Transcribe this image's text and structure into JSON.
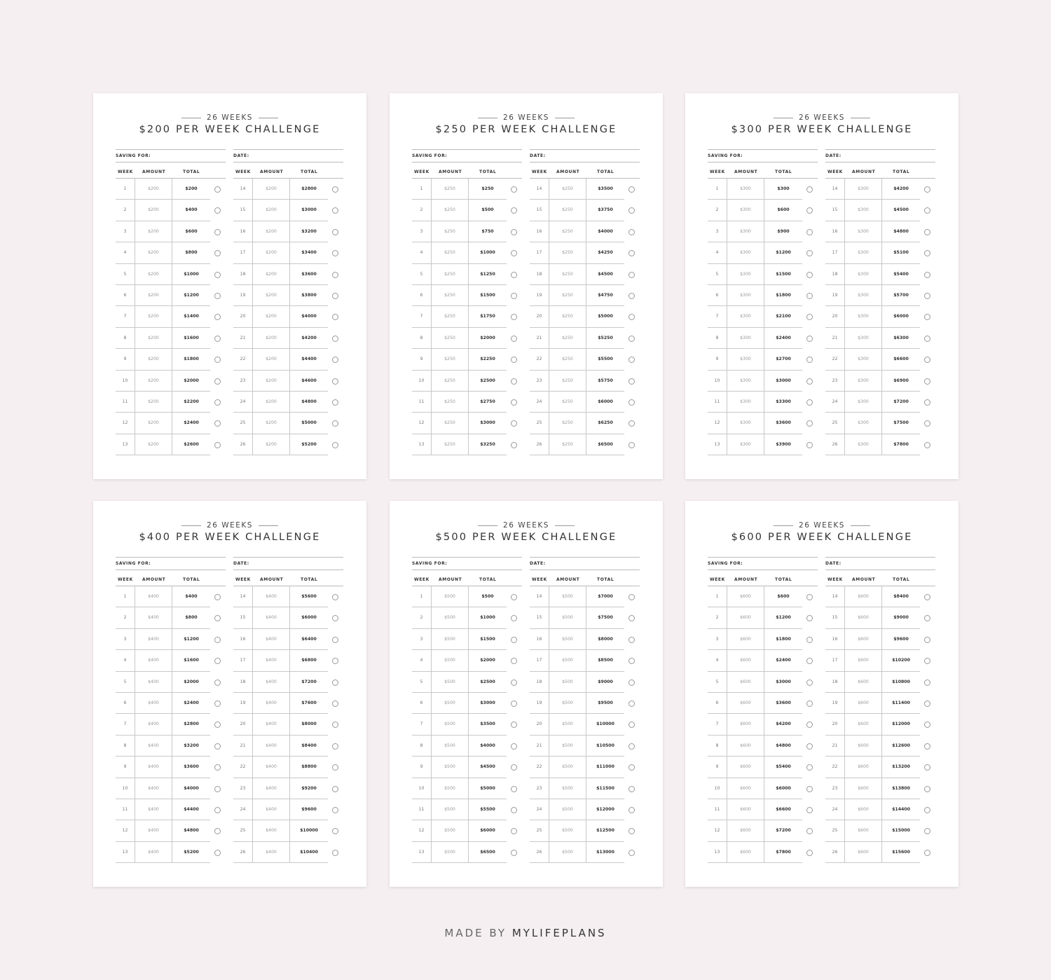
{
  "subtitle": "26 WEEKS",
  "saving_label": "SAVING FOR:",
  "date_label": "DATE:",
  "columns": [
    "WEEK",
    "AMOUNT",
    "TOTAL"
  ],
  "footer": {
    "prefix": "MADE BY",
    "brand": "MYLIFEPLANS"
  },
  "pages": [
    {
      "title": "$200 PER WEEK CHALLENGE",
      "rows": [
        [
          "1",
          "$200",
          "$200"
        ],
        [
          "2",
          "$200",
          "$400"
        ],
        [
          "3",
          "$200",
          "$600"
        ],
        [
          "4",
          "$200",
          "$800"
        ],
        [
          "5",
          "$200",
          "$1000"
        ],
        [
          "6",
          "$200",
          "$1200"
        ],
        [
          "7",
          "$200",
          "$1400"
        ],
        [
          "8",
          "$200",
          "$1600"
        ],
        [
          "9",
          "$200",
          "$1800"
        ],
        [
          "10",
          "$200",
          "$2000"
        ],
        [
          "11",
          "$200",
          "$2200"
        ],
        [
          "12",
          "$200",
          "$2400"
        ],
        [
          "13",
          "$200",
          "$2600"
        ],
        [
          "14",
          "$200",
          "$2800"
        ],
        [
          "15",
          "$200",
          "$3000"
        ],
        [
          "16",
          "$200",
          "$3200"
        ],
        [
          "17",
          "$200",
          "$3400"
        ],
        [
          "18",
          "$200",
          "$3600"
        ],
        [
          "19",
          "$200",
          "$3800"
        ],
        [
          "20",
          "$200",
          "$4000"
        ],
        [
          "21",
          "$200",
          "$4200"
        ],
        [
          "22",
          "$200",
          "$4400"
        ],
        [
          "23",
          "$200",
          "$4600"
        ],
        [
          "24",
          "$200",
          "$4800"
        ],
        [
          "25",
          "$200",
          "$5000"
        ],
        [
          "26",
          "$200",
          "$5200"
        ]
      ]
    },
    {
      "title": "$250 PER WEEK CHALLENGE",
      "rows": [
        [
          "1",
          "$250",
          "$250"
        ],
        [
          "2",
          "$250",
          "$500"
        ],
        [
          "3",
          "$250",
          "$750"
        ],
        [
          "4",
          "$250",
          "$1000"
        ],
        [
          "5",
          "$250",
          "$1250"
        ],
        [
          "6",
          "$250",
          "$1500"
        ],
        [
          "7",
          "$250",
          "$1750"
        ],
        [
          "8",
          "$250",
          "$2000"
        ],
        [
          "9",
          "$250",
          "$2250"
        ],
        [
          "10",
          "$250",
          "$2500"
        ],
        [
          "11",
          "$250",
          "$2750"
        ],
        [
          "12",
          "$250",
          "$3000"
        ],
        [
          "13",
          "$250",
          "$3250"
        ],
        [
          "14",
          "$250",
          "$3500"
        ],
        [
          "15",
          "$250",
          "$3750"
        ],
        [
          "16",
          "$250",
          "$4000"
        ],
        [
          "17",
          "$250",
          "$4250"
        ],
        [
          "18",
          "$250",
          "$4500"
        ],
        [
          "19",
          "$250",
          "$4750"
        ],
        [
          "20",
          "$250",
          "$5000"
        ],
        [
          "21",
          "$250",
          "$5250"
        ],
        [
          "22",
          "$250",
          "$5500"
        ],
        [
          "23",
          "$250",
          "$5750"
        ],
        [
          "24",
          "$250",
          "$6000"
        ],
        [
          "25",
          "$250",
          "$6250"
        ],
        [
          "26",
          "$250",
          "$6500"
        ]
      ]
    },
    {
      "title": "$300 PER WEEK CHALLENGE",
      "rows": [
        [
          "1",
          "$300",
          "$300"
        ],
        [
          "2",
          "$300",
          "$600"
        ],
        [
          "3",
          "$300",
          "$900"
        ],
        [
          "4",
          "$300",
          "$1200"
        ],
        [
          "5",
          "$300",
          "$1500"
        ],
        [
          "6",
          "$300",
          "$1800"
        ],
        [
          "7",
          "$300",
          "$2100"
        ],
        [
          "8",
          "$300",
          "$2400"
        ],
        [
          "9",
          "$300",
          "$2700"
        ],
        [
          "10",
          "$300",
          "$3000"
        ],
        [
          "11",
          "$300",
          "$3300"
        ],
        [
          "12",
          "$300",
          "$3600"
        ],
        [
          "13",
          "$300",
          "$3900"
        ],
        [
          "14",
          "$300",
          "$4200"
        ],
        [
          "15",
          "$300",
          "$4500"
        ],
        [
          "16",
          "$300",
          "$4800"
        ],
        [
          "17",
          "$300",
          "$5100"
        ],
        [
          "18",
          "$300",
          "$5400"
        ],
        [
          "19",
          "$300",
          "$5700"
        ],
        [
          "20",
          "$300",
          "$6000"
        ],
        [
          "21",
          "$300",
          "$6300"
        ],
        [
          "22",
          "$300",
          "$6600"
        ],
        [
          "23",
          "$300",
          "$6900"
        ],
        [
          "24",
          "$300",
          "$7200"
        ],
        [
          "25",
          "$300",
          "$7500"
        ],
        [
          "26",
          "$300",
          "$7800"
        ]
      ]
    },
    {
      "title": "$400 PER WEEK CHALLENGE",
      "rows": [
        [
          "1",
          "$400",
          "$400"
        ],
        [
          "2",
          "$400",
          "$800"
        ],
        [
          "3",
          "$400",
          "$1200"
        ],
        [
          "4",
          "$400",
          "$1600"
        ],
        [
          "5",
          "$400",
          "$2000"
        ],
        [
          "6",
          "$400",
          "$2400"
        ],
        [
          "7",
          "$400",
          "$2800"
        ],
        [
          "8",
          "$400",
          "$3200"
        ],
        [
          "9",
          "$400",
          "$3600"
        ],
        [
          "10",
          "$400",
          "$4000"
        ],
        [
          "11",
          "$400",
          "$4400"
        ],
        [
          "12",
          "$400",
          "$4800"
        ],
        [
          "13",
          "$400",
          "$5200"
        ],
        [
          "14",
          "$400",
          "$5600"
        ],
        [
          "15",
          "$400",
          "$6000"
        ],
        [
          "16",
          "$400",
          "$6400"
        ],
        [
          "17",
          "$400",
          "$6800"
        ],
        [
          "18",
          "$400",
          "$7200"
        ],
        [
          "19",
          "$400",
          "$7600"
        ],
        [
          "20",
          "$400",
          "$8000"
        ],
        [
          "21",
          "$400",
          "$8400"
        ],
        [
          "22",
          "$400",
          "$8800"
        ],
        [
          "23",
          "$400",
          "$9200"
        ],
        [
          "24",
          "$400",
          "$9600"
        ],
        [
          "25",
          "$400",
          "$10000"
        ],
        [
          "26",
          "$400",
          "$10400"
        ]
      ]
    },
    {
      "title": "$500 PER WEEK CHALLENGE",
      "rows": [
        [
          "1",
          "$500",
          "$500"
        ],
        [
          "2",
          "$500",
          "$1000"
        ],
        [
          "3",
          "$500",
          "$1500"
        ],
        [
          "4",
          "$500",
          "$2000"
        ],
        [
          "5",
          "$500",
          "$2500"
        ],
        [
          "6",
          "$500",
          "$3000"
        ],
        [
          "7",
          "$500",
          "$3500"
        ],
        [
          "8",
          "$500",
          "$4000"
        ],
        [
          "9",
          "$500",
          "$4500"
        ],
        [
          "10",
          "$500",
          "$5000"
        ],
        [
          "11",
          "$500",
          "$5500"
        ],
        [
          "12",
          "$500",
          "$6000"
        ],
        [
          "13",
          "$500",
          "$6500"
        ],
        [
          "14",
          "$500",
          "$7000"
        ],
        [
          "15",
          "$500",
          "$7500"
        ],
        [
          "16",
          "$500",
          "$8000"
        ],
        [
          "17",
          "$500",
          "$8500"
        ],
        [
          "18",
          "$500",
          "$9000"
        ],
        [
          "19",
          "$500",
          "$9500"
        ],
        [
          "20",
          "$500",
          "$10000"
        ],
        [
          "21",
          "$500",
          "$10500"
        ],
        [
          "22",
          "$500",
          "$11000"
        ],
        [
          "23",
          "$500",
          "$11500"
        ],
        [
          "24",
          "$500",
          "$12000"
        ],
        [
          "25",
          "$500",
          "$12500"
        ],
        [
          "26",
          "$500",
          "$13000"
        ]
      ]
    },
    {
      "title": "$600 PER WEEK CHALLENGE",
      "rows": [
        [
          "1",
          "$600",
          "$600"
        ],
        [
          "2",
          "$600",
          "$1200"
        ],
        [
          "3",
          "$600",
          "$1800"
        ],
        [
          "4",
          "$600",
          "$2400"
        ],
        [
          "5",
          "$600",
          "$3000"
        ],
        [
          "6",
          "$600",
          "$3600"
        ],
        [
          "7",
          "$600",
          "$4200"
        ],
        [
          "8",
          "$600",
          "$4800"
        ],
        [
          "9",
          "$600",
          "$5400"
        ],
        [
          "10",
          "$600",
          "$6000"
        ],
        [
          "11",
          "$600",
          "$6600"
        ],
        [
          "12",
          "$600",
          "$7200"
        ],
        [
          "13",
          "$600",
          "$7800"
        ],
        [
          "14",
          "$600",
          "$8400"
        ],
        [
          "15",
          "$600",
          "$9000"
        ],
        [
          "16",
          "$600",
          "$9600"
        ],
        [
          "17",
          "$600",
          "$10200"
        ],
        [
          "18",
          "$600",
          "$10800"
        ],
        [
          "19",
          "$600",
          "$11400"
        ],
        [
          "20",
          "$600",
          "$12000"
        ],
        [
          "21",
          "$600",
          "$12600"
        ],
        [
          "22",
          "$600",
          "$13200"
        ],
        [
          "23",
          "$600",
          "$13800"
        ],
        [
          "24",
          "$600",
          "$14400"
        ],
        [
          "25",
          "$600",
          "$15000"
        ],
        [
          "26",
          "$600",
          "$15600"
        ]
      ]
    }
  ]
}
